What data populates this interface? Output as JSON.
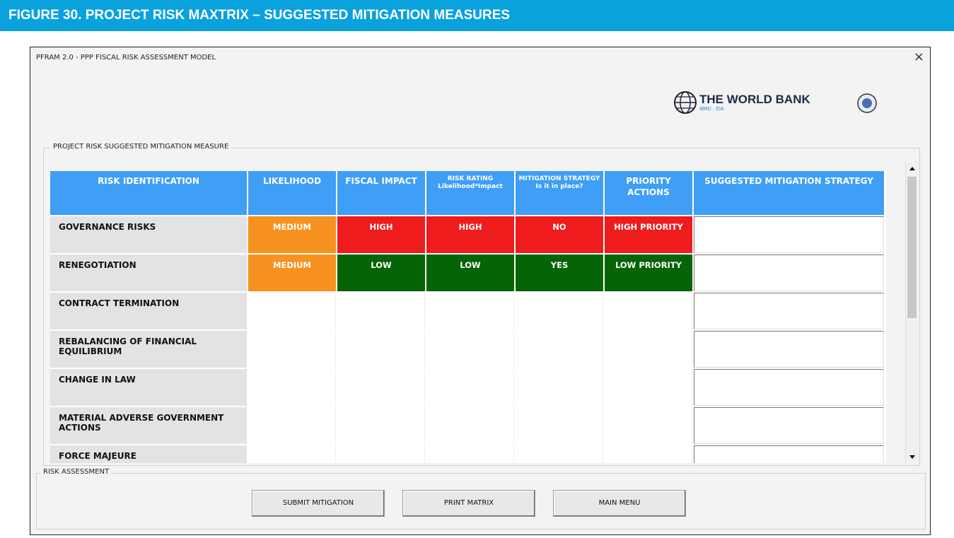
{
  "banner": {
    "title": "FIGURE 30. PROJECT RISK MAXTRIX – SUGGESTED MITIGATION MEASURES"
  },
  "window": {
    "title": "PFRAM 2.0 - PPP FISCAL RISK ASSESSMENT MODEL",
    "close": "×"
  },
  "logo": {
    "name": "THE WORLD BANK",
    "subtitle": "IBRD · IDA"
  },
  "matrix": {
    "label": "PROJECT RISK SUGGESTED MITIGATION MEASURE",
    "header_color": "#3f9ef6",
    "columns": [
      {
        "title": "RISK IDENTIFICATION"
      },
      {
        "title": "LIKELIHOOD"
      },
      {
        "title": "FISCAL IMPACT"
      },
      {
        "title": "RISK RATING",
        "subtitle": "Likelihood*Impact"
      },
      {
        "title": "MITIGATION STRATEGY",
        "subtitle": "Is it in place?"
      },
      {
        "title": "PRIORITY ACTIONS"
      },
      {
        "title": "SUGGESTED MITIGATION STRATEGY"
      }
    ],
    "rows": [
      {
        "name": "GOVERNANCE RISKS",
        "cells": [
          {
            "text": "MEDIUM",
            "color": "#f7921e"
          },
          {
            "text": "HIGH",
            "color": "#ee1c1c"
          },
          {
            "text": "HIGH",
            "color": "#ee1c1c"
          },
          {
            "text": "NO",
            "color": "#ee1c1c"
          },
          {
            "text": "HIGH PRIORITY",
            "color": "#ee1c1c"
          }
        ]
      },
      {
        "name": "RENEGOTIATION",
        "cells": [
          {
            "text": "MEDIUM",
            "color": "#f7921e"
          },
          {
            "text": "LOW",
            "color": "#056405"
          },
          {
            "text": "LOW",
            "color": "#056405"
          },
          {
            "text": "YES",
            "color": "#056405"
          },
          {
            "text": "LOW PRIORITY",
            "color": "#056405"
          }
        ]
      },
      {
        "name": "CONTRACT TERMINATION"
      },
      {
        "name": "REBALANCING OF FINANCIAL EQUILIBRIUM"
      },
      {
        "name": "CHANGE IN LAW"
      },
      {
        "name": "MATERIAL ADVERSE GOVERNMENT ACTIONS"
      },
      {
        "name": "FORCE MAJEURE"
      }
    ]
  },
  "assessment": {
    "label": "RISK ASSESSMENT",
    "buttons": [
      "SUBMIT MITIGATION",
      "PRINT MATRIX",
      "MAIN MENU"
    ]
  }
}
